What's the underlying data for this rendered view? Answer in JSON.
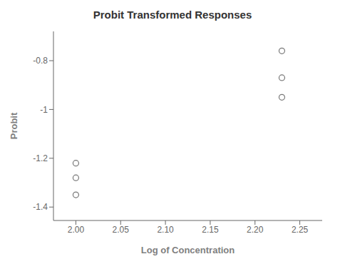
{
  "chart_data": {
    "type": "scatter",
    "title": "Probit Transformed Responses",
    "xlabel": "Log of Concentration",
    "ylabel": "Probit",
    "x": [
      2.0,
      2.0,
      2.0,
      2.23,
      2.23,
      2.23
    ],
    "values": [
      -1.22,
      -1.28,
      -1.35,
      -0.76,
      -0.87,
      -0.95
    ],
    "xlim": [
      1.975,
      2.275
    ],
    "ylim": [
      -1.455,
      -0.68
    ],
    "xticks": [
      {
        "value": 2.0,
        "label": "2.00"
      },
      2.05,
      {
        "value": 2.1,
        "label": "2.10"
      },
      2.15,
      {
        "value": 2.2,
        "label": "2.20"
      },
      2.25
    ],
    "yticks": [
      -1.4,
      -1.2,
      -1.0,
      -0.8
    ],
    "color": "#777777",
    "marker": "open circle",
    "grid": false
  }
}
